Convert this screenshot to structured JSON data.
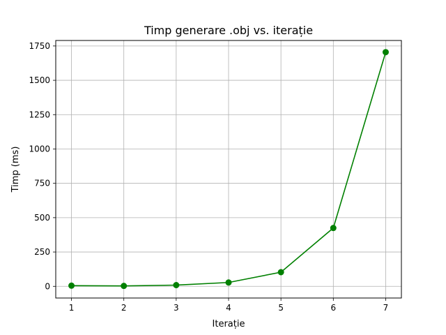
{
  "chart_data": {
    "type": "line",
    "title": "Timp generare .obj vs. iterație",
    "xlabel": "Iterație",
    "ylabel": "Timp (ms)",
    "x": [
      1,
      2,
      3,
      4,
      5,
      6,
      7
    ],
    "xticks": [
      1,
      2,
      3,
      4,
      5,
      6,
      7
    ],
    "xlim": [
      0.7,
      7.3
    ],
    "ylim": [
      -85,
      1790
    ],
    "yticks": [
      0,
      250,
      500,
      750,
      1000,
      1250,
      1500,
      1750
    ],
    "grid": true,
    "series": [
      {
        "values": [
          5,
          3,
          9,
          28,
          103,
          425,
          1705
        ],
        "color": "#008000",
        "marker": "circle"
      }
    ]
  }
}
